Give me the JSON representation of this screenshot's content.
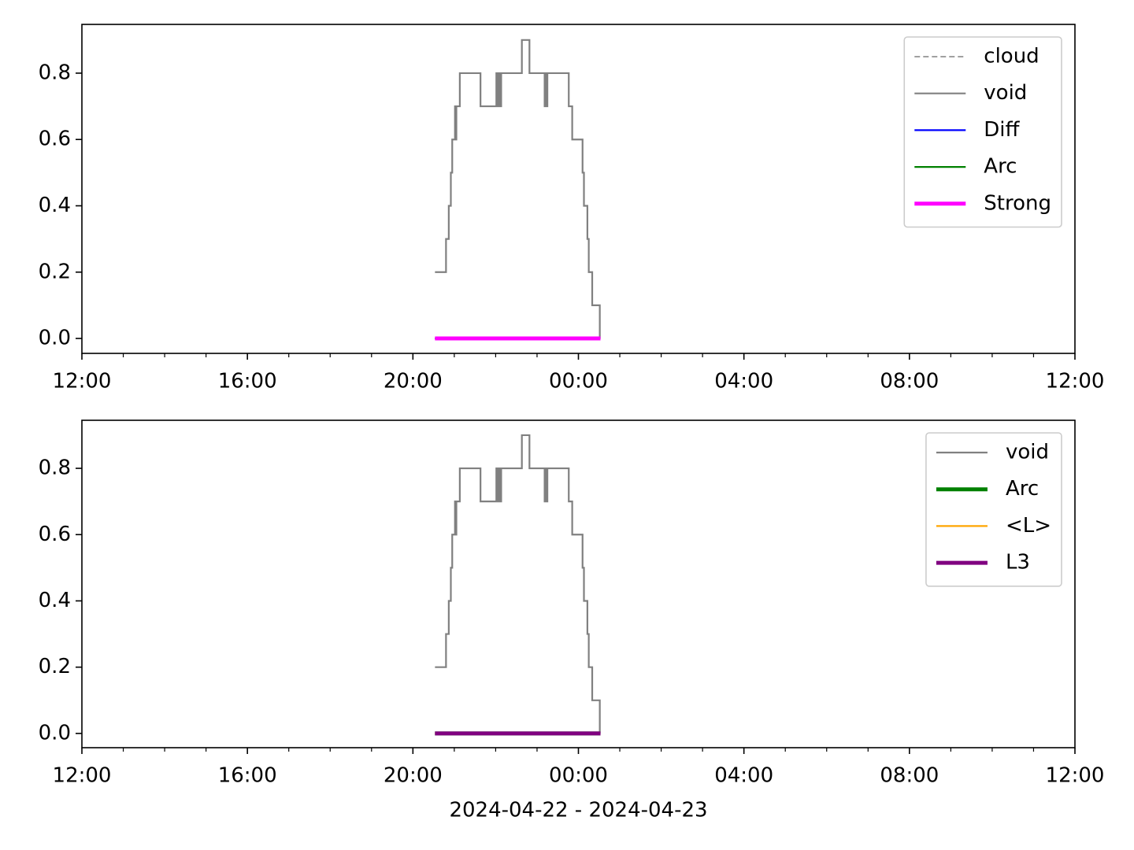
{
  "chart_data": [
    {
      "type": "line",
      "drawstyle": "steps-post",
      "x": [
        "2024-04-22 20:32",
        "2024-04-22 20:48",
        "2024-04-22 20:52",
        "2024-04-22 20:55",
        "2024-04-22 20:57",
        "2024-04-22 21:01",
        "2024-04-22 21:02",
        "2024-04-22 21:03",
        "2024-04-22 21:08",
        "2024-04-22 21:38",
        "2024-04-22 22:01",
        "2024-04-22 22:02",
        "2024-04-22 22:04",
        "2024-04-22 22:05",
        "2024-04-22 22:06",
        "2024-04-22 22:07",
        "2024-04-22 22:08",
        "2024-04-22 22:38",
        "2024-04-22 22:49",
        "2024-04-22 23:11",
        "2024-04-22 23:13",
        "2024-04-22 23:14",
        "2024-04-22 23:15",
        "2024-04-22 23:46",
        "2024-04-22 23:51",
        "2024-04-23 00:06",
        "2024-04-23 00:08",
        "2024-04-23 00:13",
        "2024-04-23 00:15",
        "2024-04-23 00:20",
        "2024-04-23 00:31",
        "2024-04-23 00:32"
      ],
      "series": [
        {
          "name": "cloud",
          "color": "#808080",
          "linestyle": "dashed",
          "linewidth": 1.5,
          "values": [
            0,
            0,
            0,
            0,
            0,
            0,
            0,
            0,
            0,
            0,
            0,
            0,
            0,
            0,
            0,
            0,
            0,
            0,
            0,
            0,
            0,
            0,
            0,
            0,
            0,
            0,
            0,
            0,
            0,
            0,
            0,
            0
          ]
        },
        {
          "name": "void",
          "color": "#808080",
          "linestyle": "solid",
          "linewidth": 2.2,
          "values": [
            0.2,
            0.3,
            0.4,
            0.5,
            0.6,
            0.7,
            0.6,
            0.7,
            0.8,
            0.7,
            0.8,
            0.7,
            0.8,
            0.7,
            0.8,
            0.7,
            0.8,
            0.9,
            0.8,
            0.7,
            0.8,
            0.7,
            0.8,
            0.7,
            0.6,
            0.5,
            0.4,
            0.3,
            0.2,
            0.1,
            0,
            0
          ]
        },
        {
          "name": "Diff",
          "color": "#0000ff",
          "linestyle": "solid",
          "linewidth": 2.2,
          "values": [
            0,
            0,
            0,
            0,
            0,
            0,
            0,
            0,
            0,
            0,
            0,
            0,
            0,
            0,
            0,
            0,
            0,
            0,
            0,
            0,
            0,
            0,
            0,
            0,
            0,
            0,
            0,
            0,
            0,
            0,
            0,
            0
          ]
        },
        {
          "name": "Arc",
          "color": "#008000",
          "linestyle": "solid",
          "linewidth": 2.2,
          "values": [
            0,
            0,
            0,
            0,
            0,
            0,
            0,
            0,
            0,
            0,
            0,
            0,
            0,
            0,
            0,
            0,
            0,
            0,
            0,
            0,
            0,
            0,
            0,
            0,
            0,
            0,
            0,
            0,
            0,
            0,
            0,
            0
          ]
        },
        {
          "name": "Strong",
          "color": "#ff00ff",
          "linestyle": "solid",
          "linewidth": 5,
          "values": [
            0,
            0,
            0,
            0,
            0,
            0,
            0,
            0,
            0,
            0,
            0,
            0,
            0,
            0,
            0,
            0,
            0,
            0,
            0,
            0,
            0,
            0,
            0,
            0,
            0,
            0,
            0,
            0,
            0,
            0,
            0,
            0
          ]
        }
      ],
      "xlim": [
        "2024-04-22 12:00",
        "2024-04-23 12:00"
      ],
      "xticks": [
        {
          "value": "2024-04-22 12:00",
          "label": "12:00"
        },
        {
          "value": "2024-04-22 16:00",
          "label": "16:00"
        },
        {
          "value": "2024-04-22 20:00",
          "label": "20:00"
        },
        {
          "value": "2024-04-23 00:00",
          "label": "00:00"
        },
        {
          "value": "2024-04-23 04:00",
          "label": "04:00"
        },
        {
          "value": "2024-04-23 08:00",
          "label": "08:00"
        },
        {
          "value": "2024-04-23 12:00",
          "label": "12:00"
        }
      ],
      "ylim": [
        -0.045,
        0.947
      ],
      "yticks": [
        {
          "value": 0,
          "label": "0.0"
        },
        0.2,
        0.4,
        0.6,
        0.8
      ],
      "legend": "upper right"
    },
    {
      "type": "line",
      "drawstyle": "steps-post",
      "x": [
        "2024-04-22 20:32",
        "2024-04-22 20:48",
        "2024-04-22 20:52",
        "2024-04-22 20:55",
        "2024-04-22 20:57",
        "2024-04-22 21:01",
        "2024-04-22 21:02",
        "2024-04-22 21:03",
        "2024-04-22 21:08",
        "2024-04-22 21:38",
        "2024-04-22 22:01",
        "2024-04-22 22:02",
        "2024-04-22 22:04",
        "2024-04-22 22:05",
        "2024-04-22 22:06",
        "2024-04-22 22:07",
        "2024-04-22 22:08",
        "2024-04-22 22:38",
        "2024-04-22 22:49",
        "2024-04-22 23:11",
        "2024-04-22 23:13",
        "2024-04-22 23:14",
        "2024-04-22 23:15",
        "2024-04-22 23:46",
        "2024-04-22 23:51",
        "2024-04-23 00:06",
        "2024-04-23 00:08",
        "2024-04-23 00:13",
        "2024-04-23 00:15",
        "2024-04-23 00:20",
        "2024-04-23 00:31",
        "2024-04-23 00:32"
      ],
      "series": [
        {
          "name": "void",
          "color": "#808080",
          "linestyle": "solid",
          "linewidth": 2.2,
          "values": [
            0.2,
            0.3,
            0.4,
            0.5,
            0.6,
            0.7,
            0.6,
            0.7,
            0.8,
            0.7,
            0.8,
            0.7,
            0.8,
            0.7,
            0.8,
            0.7,
            0.8,
            0.9,
            0.8,
            0.7,
            0.8,
            0.7,
            0.8,
            0.7,
            0.6,
            0.5,
            0.4,
            0.3,
            0.2,
            0.1,
            0,
            0
          ]
        },
        {
          "name": "Arc",
          "color": "#008000",
          "linestyle": "solid",
          "linewidth": 5,
          "values": [
            0,
            0,
            0,
            0,
            0,
            0,
            0,
            0,
            0,
            0,
            0,
            0,
            0,
            0,
            0,
            0,
            0,
            0,
            0,
            0,
            0,
            0,
            0,
            0,
            0,
            0,
            0,
            0,
            0,
            0,
            0,
            0
          ]
        },
        {
          "name": "<L>",
          "color": "#ffa500",
          "linestyle": "solid",
          "linewidth": 2.2,
          "values": [
            0,
            0,
            0,
            0,
            0,
            0,
            0,
            0,
            0,
            0,
            0,
            0,
            0,
            0,
            0,
            0,
            0,
            0,
            0,
            0,
            0,
            0,
            0,
            0,
            0,
            0,
            0,
            0,
            0,
            0,
            0,
            0
          ]
        },
        {
          "name": "L3",
          "color": "#800080",
          "linestyle": "solid",
          "linewidth": 5,
          "values": [
            0,
            0,
            0,
            0,
            0,
            0,
            0,
            0,
            0,
            0,
            0,
            0,
            0,
            0,
            0,
            0,
            0,
            0,
            0,
            0,
            0,
            0,
            0,
            0,
            0,
            0,
            0,
            0,
            0,
            0,
            0,
            0
          ]
        }
      ],
      "xlim": [
        "2024-04-22 12:00",
        "2024-04-23 12:00"
      ],
      "xticks": [
        {
          "value": "2024-04-22 12:00",
          "label": "12:00"
        },
        {
          "value": "2024-04-22 16:00",
          "label": "16:00"
        },
        {
          "value": "2024-04-22 20:00",
          "label": "20:00"
        },
        {
          "value": "2024-04-23 00:00",
          "label": "00:00"
        },
        {
          "value": "2024-04-23 04:00",
          "label": "04:00"
        },
        {
          "value": "2024-04-23 08:00",
          "label": "08:00"
        },
        {
          "value": "2024-04-23 12:00",
          "label": "12:00"
        }
      ],
      "ylim": [
        -0.043,
        0.945
      ],
      "yticks": [
        {
          "value": 0,
          "label": "0.0"
        },
        0.2,
        0.4,
        0.6,
        0.8
      ],
      "xlabel": "2024-04-22 - 2024-04-23",
      "legend": "upper right"
    }
  ]
}
